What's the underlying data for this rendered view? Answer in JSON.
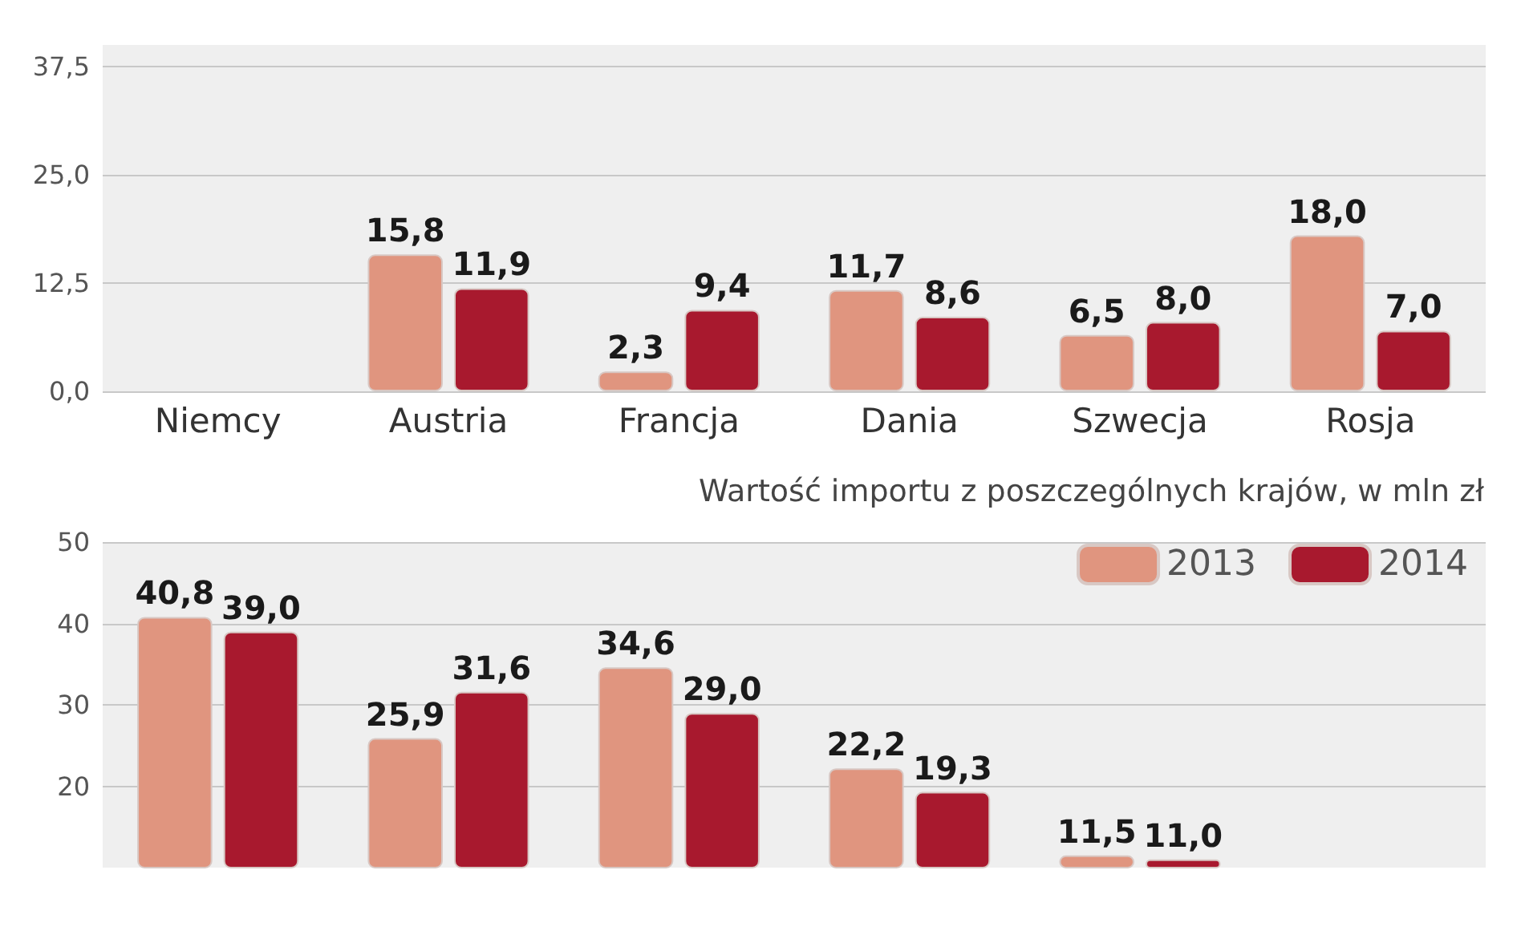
{
  "chart_data": [
    {
      "type": "bar",
      "categories": [
        "Niemcy",
        "Austria",
        "Francja",
        "Dania",
        "Szwecja",
        "Rosja"
      ],
      "series": [
        {
          "color": "#e0957f",
          "values": [
            null,
            15.8,
            2.3,
            11.7,
            6.5,
            18.0
          ],
          "value_labels": [
            null,
            "15,8",
            "2,3",
            "11,7",
            "6,5",
            "18,0"
          ]
        },
        {
          "color": "#a8192e",
          "values": [
            null,
            11.9,
            9.4,
            8.6,
            8.0,
            7.0
          ],
          "value_labels": [
            null,
            "11,9",
            "9,4",
            "8,6",
            "8,0",
            "7,0"
          ]
        }
      ],
      "ylim": [
        0,
        40
      ],
      "yticks": [
        {
          "value": 0,
          "label": "0,0"
        },
        {
          "value": 12.5,
          "label": "12,5"
        },
        {
          "value": 25,
          "label": "25,0"
        },
        {
          "value": 37.5,
          "label": "37,5"
        }
      ],
      "grid": "y",
      "legend": false
    },
    {
      "type": "bar",
      "title": "Wartość importu z poszczególnych krajów, w mln zł",
      "categories": [
        null,
        null,
        null,
        null,
        null,
        null
      ],
      "series": [
        {
          "name": "2013",
          "color": "#e0957f",
          "values": [
            40.8,
            25.9,
            34.6,
            22.2,
            11.5,
            null
          ],
          "value_labels": [
            "40,8",
            "25,9",
            "34,6",
            "22,2",
            "11,5",
            null
          ]
        },
        {
          "name": "2014",
          "color": "#a8192e",
          "values": [
            39.0,
            31.6,
            29.0,
            19.3,
            11.0,
            null
          ],
          "value_labels": [
            "39,0",
            "31,6",
            "29,0",
            "19,3",
            "11,0",
            null
          ]
        }
      ],
      "ylim": [
        10,
        50
      ],
      "yticks": [
        20,
        30,
        40,
        50
      ],
      "grid": "y",
      "legend": "top right"
    }
  ]
}
